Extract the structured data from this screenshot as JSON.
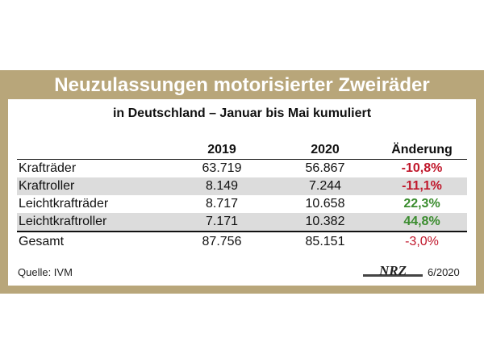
{
  "chart_data": {
    "type": "table",
    "title": "Neuzulassungen motorisierter Zweiräder",
    "subtitle": "in Deutschland – Januar bis Mai kumuliert",
    "columns": [
      "",
      "2019",
      "2020",
      "Änderung"
    ],
    "rows": [
      {
        "label": "Krafträder",
        "v2019": "63.719",
        "v2020": "56.867",
        "change": "-10,8%"
      },
      {
        "label": "Kraftroller",
        "v2019": "8.149",
        "v2020": "7.244",
        "change": "-11,1%"
      },
      {
        "label": "Leichtkrafträder",
        "v2019": "8.717",
        "v2020": "10.658",
        "change": "22,3%"
      },
      {
        "label": "Leichtkraftroller",
        "v2019": "7.171",
        "v2020": "10.382",
        "change": "44,8%"
      }
    ],
    "total": {
      "label": "Gesamt",
      "v2019": "87.756",
      "v2020": "85.151",
      "change": "-3,0%"
    }
  },
  "footer": {
    "source": "Quelle: IVM",
    "logo_text": "NRZ",
    "date": "6/2020"
  },
  "colors": {
    "frame": "#b8a67a",
    "negative": "#c0172b",
    "positive": "#3a8c2e",
    "row_shade": "#dcdcdc"
  }
}
